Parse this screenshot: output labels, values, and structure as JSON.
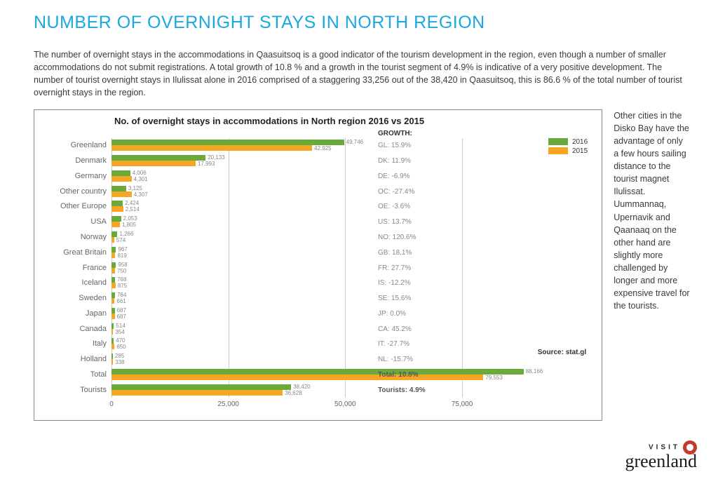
{
  "title": "NUMBER OF OVERNIGHT STAYS IN NORTH REGION",
  "intro": "The number of overnight stays in the accommodations in Qaasuitsoq is a good indicator of the tourism development in the region, even though a number of smaller accommodations do not submit registrations. A total growth of 10.8 % and a growth in the tourist segment of 4.9% is indicative of a very positive development. The number of tourist overnight stays in Ilulissat alone in 2016 comprised of a staggering 33,256 out of the 38,420 in Qaasuitsoq, this is 86.6 % of the total number of tourist overnight stays in the region.",
  "sidenote": "Other cities in the Disko Bay have the advantage of only a few hours sailing distance to the tourist magnet Ilulissat. Uummannaq, Upernavik and Qaanaaq on the other hand are slightly more challenged by longer and more expensive travel for the tourists.",
  "chart": {
    "title": "No. of overnight stays in accommodations in North region 2016 vs 2015",
    "growth_header": "GROWTH:",
    "source": "Source: stat.gl",
    "colors": {
      "y2016": "#6aaa3a",
      "y2015": "#f5a623",
      "grid": "#cccccc"
    },
    "legend": [
      {
        "label": "2016",
        "color": "#6aaa3a"
      },
      {
        "label": "2015",
        "color": "#f5a623"
      }
    ],
    "xmax": 90000,
    "xticks": [
      {
        "v": 0,
        "label": "0"
      },
      {
        "v": 25000,
        "label": "25,000"
      },
      {
        "v": 50000,
        "label": "50,000"
      },
      {
        "v": 75000,
        "label": "75,000"
      }
    ],
    "rows": [
      {
        "cat": "Greenland",
        "v2016": 49746,
        "l2016": "49,746",
        "v2015": 42925,
        "l2015": "42,925",
        "growth": "GL: 15.9%",
        "bold": false
      },
      {
        "cat": "Denmark",
        "v2016": 20133,
        "l2016": "20,133",
        "v2015": 17993,
        "l2015": "17,993",
        "growth": "DK: 11.9%",
        "bold": false
      },
      {
        "cat": "Germany",
        "v2016": 4006,
        "l2016": "4,006",
        "v2015": 4301,
        "l2015": "4,301",
        "growth": "DE: -6.9%",
        "bold": false
      },
      {
        "cat": "Other country",
        "v2016": 3125,
        "l2016": "3,125",
        "v2015": 4307,
        "l2015": "4,307",
        "growth": "OC: -27.4%",
        "bold": false
      },
      {
        "cat": "Other Europe",
        "v2016": 2424,
        "l2016": "2,424",
        "v2015": 2514,
        "l2015": "2,514",
        "growth": "OE: -3.6%",
        "bold": false
      },
      {
        "cat": "USA",
        "v2016": 2053,
        "l2016": "2,053",
        "v2015": 1805,
        "l2015": "1,805",
        "growth": "US: 13.7%",
        "bold": false
      },
      {
        "cat": "Norway",
        "v2016": 1266,
        "l2016": "1,266",
        "v2015": 574,
        "l2015": "574",
        "growth": "NO: 120.6%",
        "bold": false
      },
      {
        "cat": "Great Britain",
        "v2016": 967,
        "l2016": "967",
        "v2015": 819,
        "l2015": "819",
        "growth": "GB: 18.1%",
        "bold": false
      },
      {
        "cat": "France",
        "v2016": 958,
        "l2016": "958",
        "v2015": 750,
        "l2015": "750",
        "growth": "FR: 27.7%",
        "bold": false
      },
      {
        "cat": "Iceland",
        "v2016": 768,
        "l2016": "768",
        "v2015": 875,
        "l2015": "875",
        "growth": "IS: -12.2%",
        "bold": false
      },
      {
        "cat": "Sweden",
        "v2016": 764,
        "l2016": "764",
        "v2015": 661,
        "l2015": "661",
        "growth": "SE: 15.6%",
        "bold": false
      },
      {
        "cat": "Japan",
        "v2016": 687,
        "l2016": "687",
        "v2015": 687,
        "l2015": "687",
        "growth": "JP: 0.0%",
        "bold": false
      },
      {
        "cat": "Canada",
        "v2016": 514,
        "l2016": "514",
        "v2015": 354,
        "l2015": "354",
        "growth": "CA: 45.2%",
        "bold": false
      },
      {
        "cat": "Italy",
        "v2016": 470,
        "l2016": "470",
        "v2015": 650,
        "l2015": "650",
        "growth": "IT: -27.7%",
        "bold": false
      },
      {
        "cat": "Holland",
        "v2016": 285,
        "l2016": "285",
        "v2015": 338,
        "l2015": "338",
        "growth": "NL: -15.7%",
        "bold": false
      },
      {
        "cat": "Total",
        "v2016": 88166,
        "l2016": "88,166",
        "v2015": 79553,
        "l2015": "79,553",
        "growth": "Total: 10.8%",
        "bold": true
      },
      {
        "cat": "Tourists",
        "v2016": 38420,
        "l2016": "38,420",
        "v2015": 36628,
        "l2015": "36,628",
        "growth": "Tourists: 4.9%",
        "bold": true
      }
    ]
  },
  "logo": {
    "visit": "VISIT",
    "greenland": "greenland"
  }
}
